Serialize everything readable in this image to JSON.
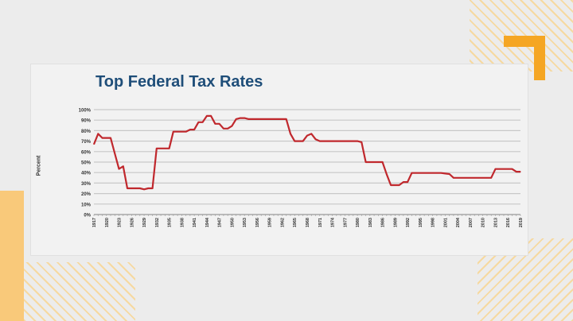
{
  "chart_data": {
    "type": "line",
    "title": "Top Federal Tax Rates",
    "ylabel": "Percent",
    "xlabel": "",
    "ylim": [
      0,
      100
    ],
    "grid": true,
    "line_color": "#c0282d",
    "yticks": [
      "0%",
      "10%",
      "20%",
      "30%",
      "40%",
      "50%",
      "60%",
      "70%",
      "80%",
      "90%",
      "100%"
    ],
    "xticks": [
      "1917",
      "1920",
      "1923",
      "1926",
      "1929",
      "1932",
      "1935",
      "1938",
      "1941",
      "1944",
      "1947",
      "1950",
      "1953",
      "1956",
      "1959",
      "1962",
      "1965",
      "1968",
      "1971",
      "1974",
      "1977",
      "1980",
      "1983",
      "1986",
      "1989",
      "1992",
      "1995",
      "1998",
      "2001",
      "2004",
      "2007",
      "2010",
      "2013",
      "2016",
      "2019"
    ],
    "x": [
      1917,
      1918,
      1919,
      1920,
      1921,
      1922,
      1923,
      1924,
      1925,
      1926,
      1927,
      1928,
      1929,
      1930,
      1931,
      1932,
      1933,
      1934,
      1935,
      1936,
      1937,
      1938,
      1939,
      1940,
      1941,
      1942,
      1943,
      1944,
      1945,
      1946,
      1947,
      1948,
      1949,
      1950,
      1951,
      1952,
      1953,
      1954,
      1955,
      1956,
      1957,
      1958,
      1959,
      1960,
      1961,
      1962,
      1963,
      1964,
      1965,
      1966,
      1967,
      1968,
      1969,
      1970,
      1971,
      1972,
      1973,
      1974,
      1975,
      1976,
      1977,
      1978,
      1979,
      1980,
      1981,
      1982,
      1983,
      1984,
      1985,
      1986,
      1987,
      1988,
      1989,
      1990,
      1991,
      1992,
      1993,
      1994,
      1995,
      1996,
      1997,
      1998,
      1999,
      2000,
      2001,
      2002,
      2003,
      2004,
      2005,
      2006,
      2007,
      2008,
      2009,
      2010,
      2011,
      2012,
      2013,
      2014,
      2015,
      2016,
      2017,
      2018,
      2019
    ],
    "y": [
      67,
      77,
      73,
      73,
      73,
      58,
      43.5,
      46,
      25,
      25,
      25,
      25,
      24,
      25,
      25,
      63,
      63,
      63,
      63,
      79,
      79,
      79,
      79,
      81,
      81,
      88,
      88,
      94,
      94,
      86.5,
      86.5,
      82,
      82,
      84.4,
      91,
      92,
      92,
      91,
      91,
      91,
      91,
      91,
      91,
      91,
      91,
      91,
      91,
      77,
      70,
      70,
      70,
      75.3,
      77,
      71.8,
      70,
      70,
      70,
      70,
      70,
      70,
      70,
      70,
      70,
      70,
      69,
      50,
      50,
      50,
      50,
      50,
      38.5,
      28,
      28,
      28,
      31,
      31,
      39.6,
      39.6,
      39.6,
      39.6,
      39.6,
      39.6,
      39.6,
      39.6,
      39.1,
      38.6,
      35,
      35,
      35,
      35,
      35,
      35,
      35,
      35,
      35,
      35,
      43.4,
      43.4,
      43.4,
      43.4,
      43.4,
      40.8,
      40.8
    ]
  }
}
